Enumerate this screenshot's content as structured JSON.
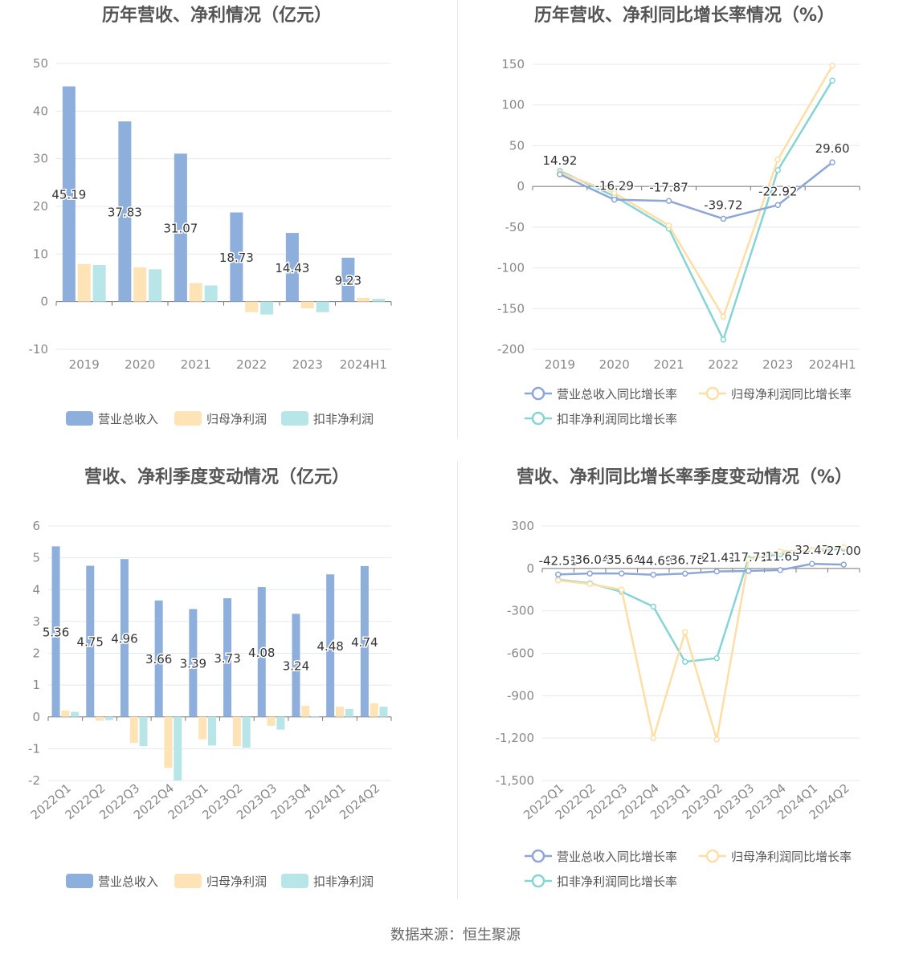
{
  "source_label": "数据来源：恒生聚源",
  "colors": {
    "revenue": "#8eaedc",
    "net": "#fde3b6",
    "deducted": "#b8e6e8",
    "revenue_line": "#8ea6d6",
    "net_line": "#fddea6",
    "deducted_line": "#86d4d6"
  },
  "chart_data": [
    {
      "type": "bar",
      "title": "历年营收、净利情况（亿元）",
      "categories": [
        "2019",
        "2020",
        "2021",
        "2022",
        "2023",
        "2024H1"
      ],
      "ylim": [
        -10,
        50
      ],
      "yticks": [
        "50",
        "40",
        "30",
        "20",
        "10",
        "0",
        "-10"
      ],
      "series": [
        {
          "name": "营业总收入",
          "values": [
            45.19,
            37.83,
            31.07,
            18.73,
            14.43,
            9.23
          ],
          "labels": [
            "45.19",
            "37.83",
            "31.07",
            "18.73",
            "14.43",
            "9.23"
          ]
        },
        {
          "name": "归母净利润",
          "values": [
            7.9,
            7.2,
            3.9,
            -2.2,
            -1.4,
            0.8
          ]
        },
        {
          "name": "扣非净利润",
          "values": [
            7.7,
            6.8,
            3.4,
            -2.7,
            -2.2,
            0.6
          ]
        }
      ],
      "legend": "bottom",
      "grid": true
    },
    {
      "type": "line",
      "title": "历年营收、净利同比增长率情况（%）",
      "categories": [
        "2019",
        "2020",
        "2021",
        "2022",
        "2023",
        "2024H1"
      ],
      "ylim": [
        -200,
        150
      ],
      "yticks": [
        "150",
        "100",
        "50",
        "0",
        "-50",
        "-100",
        "-150",
        "-200"
      ],
      "series": [
        {
          "name": "营业总收入同比增长率",
          "values": [
            14.92,
            -16.29,
            -17.87,
            -39.72,
            -22.92,
            29.6
          ],
          "labels": [
            "14.92",
            "-16.29",
            "-17.87",
            "-39.72",
            "-22.92",
            "29.60"
          ]
        },
        {
          "name": "归母净利润同比增长率",
          "values": [
            17,
            -8,
            -48,
            -160,
            33,
            148
          ]
        },
        {
          "name": "扣非净利润同比增长率",
          "values": [
            19,
            -12,
            -52,
            -188,
            20,
            130
          ]
        }
      ],
      "legend": "bottom",
      "grid": true
    },
    {
      "type": "bar",
      "title": "营收、净利季度变动情况（亿元）",
      "categories": [
        "2022Q1",
        "2022Q2",
        "2022Q3",
        "2022Q4",
        "2023Q1",
        "2023Q2",
        "2023Q3",
        "2023Q4",
        "2024Q1",
        "2024Q2"
      ],
      "ylim": [
        -2,
        6
      ],
      "yticks": [
        "6",
        "5",
        "4",
        "3",
        "2",
        "1",
        "0",
        "-1",
        "-2"
      ],
      "series": [
        {
          "name": "营业总收入",
          "values": [
            5.36,
            4.75,
            4.96,
            3.66,
            3.39,
            3.73,
            4.08,
            3.24,
            4.48,
            4.74
          ],
          "labels": [
            "5.36",
            "4.75",
            "4.96",
            "3.66",
            "3.39",
            "3.73",
            "4.08",
            "3.24",
            "4.48",
            "4.74"
          ]
        },
        {
          "name": "归母净利润",
          "values": [
            0.2,
            -0.12,
            -0.82,
            -1.6,
            -0.7,
            -0.92,
            -0.28,
            0.35,
            0.32,
            0.43
          ]
        },
        {
          "name": "扣非净利润",
          "values": [
            0.16,
            -0.1,
            -0.92,
            -2.0,
            -0.9,
            -0.97,
            -0.4,
            0.02,
            0.25,
            0.32
          ]
        }
      ],
      "legend": "bottom",
      "grid": true
    },
    {
      "type": "line",
      "title": "营收、净利同比增长率季度变动情况（%）",
      "categories": [
        "2022Q1",
        "2022Q2",
        "2022Q3",
        "2022Q4",
        "2023Q1",
        "2023Q2",
        "2023Q3",
        "2023Q4",
        "2024Q1",
        "2024Q2"
      ],
      "ylim": [
        -1500,
        300
      ],
      "yticks": [
        "300",
        "0",
        "-300",
        "-600",
        "-900",
        "-1,200",
        "-1,500"
      ],
      "series": [
        {
          "name": "营业总收入同比增长率",
          "values": [
            -42.51,
            -36.04,
            -35.64,
            -44.69,
            -36.78,
            -21.41,
            -17.71,
            -11.65,
            32.47,
            27.0
          ],
          "labels": [
            "-42.51",
            "-36.04",
            "-35.64",
            "-44.69",
            "-36.78",
            "-21.41",
            "-17.71",
            "-11.65",
            "32.47",
            "27.00"
          ]
        },
        {
          "name": "归母净利润同比增长率",
          "values": [
            -85,
            -110,
            -150,
            -1200,
            -450,
            -1210,
            60,
            120,
            130,
            150
          ]
        },
        {
          "name": "扣非净利润同比增长率",
          "values": [
            -80,
            -105,
            -165,
            -270,
            -660,
            -635,
            70,
            100,
            120,
            140
          ]
        }
      ],
      "legend": "bottom",
      "grid": true
    }
  ]
}
